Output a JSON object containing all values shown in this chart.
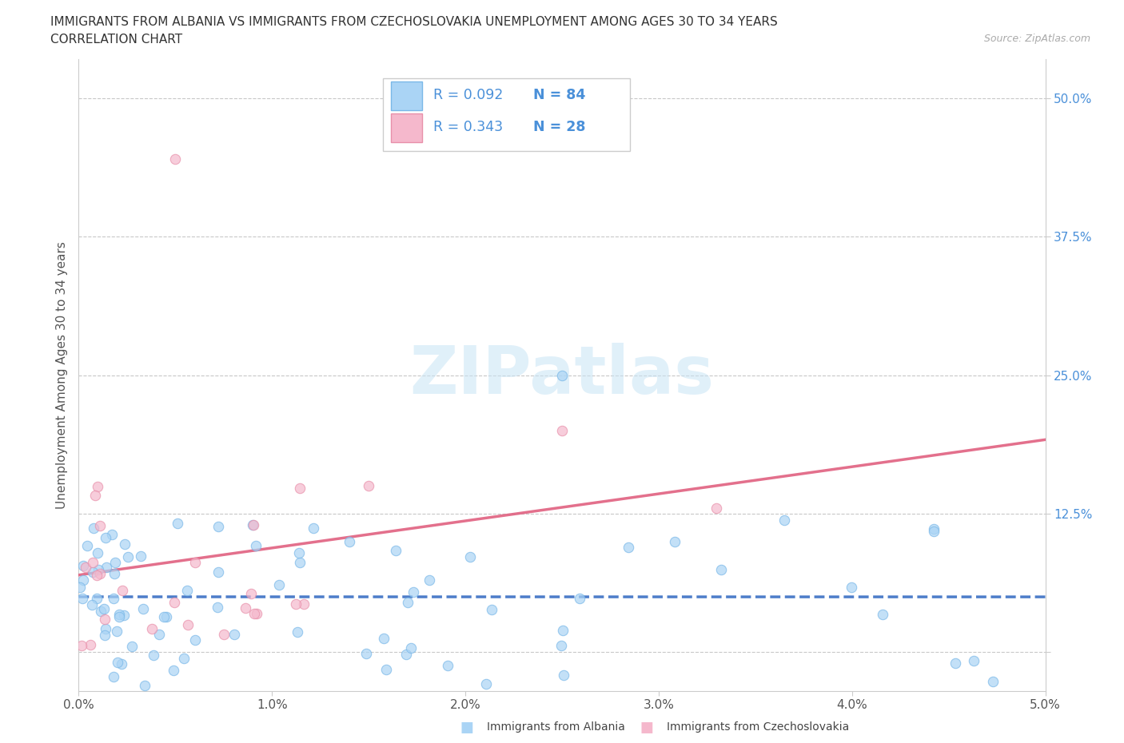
{
  "title_line1": "IMMIGRANTS FROM ALBANIA VS IMMIGRANTS FROM CZECHOSLOVAKIA UNEMPLOYMENT AMONG AGES 30 TO 34 YEARS",
  "title_line2": "CORRELATION CHART",
  "source_text": "Source: ZipAtlas.com",
  "ylabel": "Unemployment Among Ages 30 to 34 years",
  "xlim": [
    0.0,
    0.05
  ],
  "ylim": [
    -0.035,
    0.535
  ],
  "xticks": [
    0.0,
    0.01,
    0.02,
    0.03,
    0.04,
    0.05
  ],
  "xticklabels": [
    "0.0%",
    "1.0%",
    "2.0%",
    "3.0%",
    "4.0%",
    "5.0%"
  ],
  "yticks": [
    0.0,
    0.125,
    0.25,
    0.375,
    0.5
  ],
  "yticklabels": [
    "",
    "12.5%",
    "25.0%",
    "37.5%",
    "50.0%"
  ],
  "albania_color": "#aad4f5",
  "albania_edge": "#7ab8e8",
  "czechoslovakia_color": "#f5b8cc",
  "czechoslovakia_edge": "#e890aa",
  "albania_line_color": "#3a6fc4",
  "czechoslovakia_line_color": "#e06080",
  "albania_dashed": true,
  "albania_R": 0.092,
  "albania_N": 84,
  "czechoslovakia_R": 0.343,
  "czechoslovakia_N": 28,
  "legend_label_albania": "Immigrants from Albania",
  "legend_label_czechoslovakia": "Immigrants from Czechoslovakia",
  "watermark_text": "ZIPatlas",
  "background_color": "#ffffff",
  "grid_color": "#c8c8c8",
  "tick_color": "#4a90d9",
  "title_color": "#333333",
  "ylabel_color": "#555555"
}
